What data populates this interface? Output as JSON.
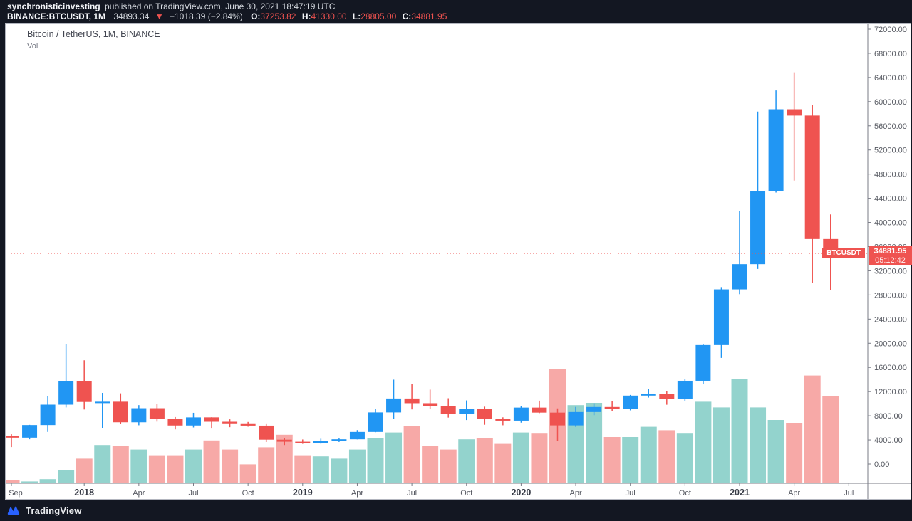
{
  "header": {
    "author": "synchronisticinvesting",
    "published": "published on TradingView.com, June 30, 2021 18:47:19 UTC",
    "symbol": "BINANCE:BTCUSDT, 1M",
    "last_price": "34893.34",
    "arrow": "▼",
    "change": "−1018.39 (−2.84%)",
    "ohlc": {
      "o_label": "O:",
      "o": "37253.82",
      "h_label": "H:",
      "h": "41330.00",
      "l_label": "L:",
      "l": "28805.00",
      "c_label": "C:",
      "c": "34881.95"
    }
  },
  "chart": {
    "title": "Bitcoin / TetherUS, 1M, BINANCE",
    "vol_label": "Vol",
    "price_label": {
      "tag": "BTCUSDT",
      "price": "34881.95",
      "countdown": "05:12:42"
    }
  },
  "footer": {
    "brand": "TradingView"
  },
  "colors": {
    "bg_dark": "#131722",
    "up": "#2196F3",
    "down": "#EF5350",
    "vol_up": "#93D3CD",
    "vol_down": "#F7A9A7",
    "label_red": "#EF5350",
    "axis_line": "#787B86",
    "axis_text": "#555860",
    "year_text": "#363A45"
  },
  "chart_data": {
    "type": "candlestick",
    "symbol": "BTCUSDT",
    "exchange": "BINANCE",
    "interval": "1M",
    "title": "Bitcoin / TetherUS, 1M, BINANCE",
    "legend": [
      "price candles (blue up / red down)",
      "volume overlay (teal up / pink down)"
    ],
    "y_axis": {
      "side": "right",
      "min": 0,
      "max": 72000,
      "tick_step": 4000,
      "format_decimals": 2,
      "grid": false
    },
    "x_axis": {
      "labels": [
        {
          "text": "Sep",
          "bar": 0,
          "is_year": false
        },
        {
          "text": "2018",
          "bar": 4,
          "is_year": true
        },
        {
          "text": "Apr",
          "bar": 7,
          "is_year": false
        },
        {
          "text": "Jul",
          "bar": 10,
          "is_year": false
        },
        {
          "text": "Oct",
          "bar": 13,
          "is_year": false
        },
        {
          "text": "2019",
          "bar": 16,
          "is_year": true
        },
        {
          "text": "Apr",
          "bar": 19,
          "is_year": false
        },
        {
          "text": "Jul",
          "bar": 22,
          "is_year": false
        },
        {
          "text": "Oct",
          "bar": 25,
          "is_year": false
        },
        {
          "text": "2020",
          "bar": 28,
          "is_year": true
        },
        {
          "text": "Apr",
          "bar": 31,
          "is_year": false
        },
        {
          "text": "Jul",
          "bar": 34,
          "is_year": false
        },
        {
          "text": "Oct",
          "bar": 37,
          "is_year": false
        },
        {
          "text": "2021",
          "bar": 40,
          "is_year": true
        },
        {
          "text": "Apr",
          "bar": 43,
          "is_year": false
        },
        {
          "text": "Jul",
          "bar": 46,
          "is_year": false
        }
      ]
    },
    "last_price": 34881.95,
    "countdown": "05:12:42",
    "columns": [
      "month",
      "open",
      "high",
      "low",
      "close",
      "volume_rel_pct"
    ],
    "candles": [
      [
        "2017-09",
        4689.89,
        4939.19,
        2817.0,
        4378.51,
        2
      ],
      [
        "2017-10",
        4378.49,
        6498.01,
        4110.0,
        6463.0,
        1
      ],
      [
        "2017-11",
        6463.0,
        11300.03,
        5325.01,
        9838.96,
        3
      ],
      [
        "2017-12",
        9837.0,
        19798.68,
        9380.0,
        13716.36,
        11
      ],
      [
        "2018-01",
        13715.65,
        17176.24,
        9035.0,
        10285.1,
        21
      ],
      [
        "2018-02",
        10285.1,
        11786.01,
        6000.01,
        10326.76,
        33
      ],
      [
        "2018-03",
        10325.64,
        11710.0,
        6600.1,
        6923.91,
        32
      ],
      [
        "2018-04",
        6922.0,
        9759.82,
        6430.0,
        9246.01,
        29
      ],
      [
        "2018-05",
        9246.01,
        9996.0,
        7032.95,
        7485.01,
        24
      ],
      [
        "2018-06",
        7485.01,
        7786.69,
        5750.0,
        6390.07,
        24
      ],
      [
        "2018-07",
        6391.08,
        8491.77,
        6070.0,
        7730.93,
        29
      ],
      [
        "2018-08",
        7735.67,
        7760.0,
        5880.0,
        7011.21,
        37
      ],
      [
        "2018-09",
        7011.21,
        7410.0,
        6111.0,
        6626.57,
        29
      ],
      [
        "2018-10",
        6626.57,
        6976.0,
        6191.0,
        6371.93,
        16
      ],
      [
        "2018-11",
        6369.52,
        6615.15,
        3652.66,
        4041.32,
        31
      ],
      [
        "2018-12",
        4041.27,
        4312.99,
        3156.26,
        3702.9,
        42
      ],
      [
        "2019-01",
        3701.23,
        4069.8,
        3349.92,
        3434.1,
        24
      ],
      [
        "2019-02",
        3434.1,
        4198.0,
        3373.1,
        3813.69,
        23
      ],
      [
        "2019-03",
        3813.69,
        4236.7,
        3661.26,
        4103.95,
        21
      ],
      [
        "2019-04",
        4103.95,
        5627.0,
        4086.3,
        5320.81,
        29
      ],
      [
        "2019-05",
        5321.94,
        9074.0,
        5271.45,
        8555.0,
        39
      ],
      [
        "2019-06",
        8555.0,
        13970.0,
        7432.0,
        10854.1,
        44
      ],
      [
        "2019-07",
        10854.1,
        13200.0,
        9049.0,
        10080.53,
        50
      ],
      [
        "2019-08",
        10080.53,
        12325.0,
        9071.0,
        9630.66,
        32
      ],
      [
        "2019-09",
        9630.66,
        10898.0,
        7700.67,
        8293.31,
        29
      ],
      [
        "2019-10",
        8293.31,
        10540.0,
        7293.47,
        9140.86,
        38
      ],
      [
        "2019-11",
        9140.86,
        9505.0,
        6515.0,
        7542.93,
        39
      ],
      [
        "2019-12",
        7540.9,
        7743.43,
        6430.0,
        7195.23,
        34
      ],
      [
        "2020-01",
        7195.24,
        9599.0,
        6863.44,
        9352.89,
        44
      ],
      [
        "2020-02",
        9351.71,
        10500.0,
        8435.0,
        8523.61,
        43
      ],
      [
        "2020-03",
        8523.61,
        9219.0,
        3782.13,
        6410.44,
        100
      ],
      [
        "2020-04",
        6410.44,
        9460.0,
        6160.0,
        8620.0,
        68
      ],
      [
        "2020-05",
        8620.0,
        10067.0,
        8100.0,
        9448.27,
        70
      ],
      [
        "2020-06",
        9448.27,
        10380.0,
        8830.0,
        9138.55,
        40
      ],
      [
        "2020-07",
        9138.08,
        11444.0,
        8900.0,
        11333.46,
        40
      ],
      [
        "2020-08",
        11335.46,
        12468.0,
        11010.0,
        11649.51,
        49
      ],
      [
        "2020-09",
        11649.51,
        12050.85,
        9825.0,
        10776.59,
        46
      ],
      [
        "2020-10",
        10776.59,
        14100.0,
        10374.0,
        13791.0,
        43
      ],
      [
        "2020-11",
        13791.0,
        19863.16,
        13195.05,
        19695.87,
        71
      ],
      [
        "2020-12",
        19695.87,
        29300.0,
        17572.33,
        28923.63,
        66
      ],
      [
        "2021-01",
        28923.63,
        41950.0,
        28130.0,
        33092.98,
        91
      ],
      [
        "2021-02",
        33092.97,
        58352.8,
        32296.16,
        45135.66,
        66
      ],
      [
        "2021-03",
        45134.11,
        61844.0,
        44950.53,
        58740.55,
        55
      ],
      [
        "2021-04",
        58739.46,
        64854.0,
        46930.0,
        57694.27,
        52
      ],
      [
        "2021-05",
        57697.25,
        59500.0,
        30000.0,
        37253.81,
        94
      ],
      [
        "2021-06",
        37253.82,
        41330.0,
        28805.0,
        34881.95,
        76
      ]
    ]
  }
}
